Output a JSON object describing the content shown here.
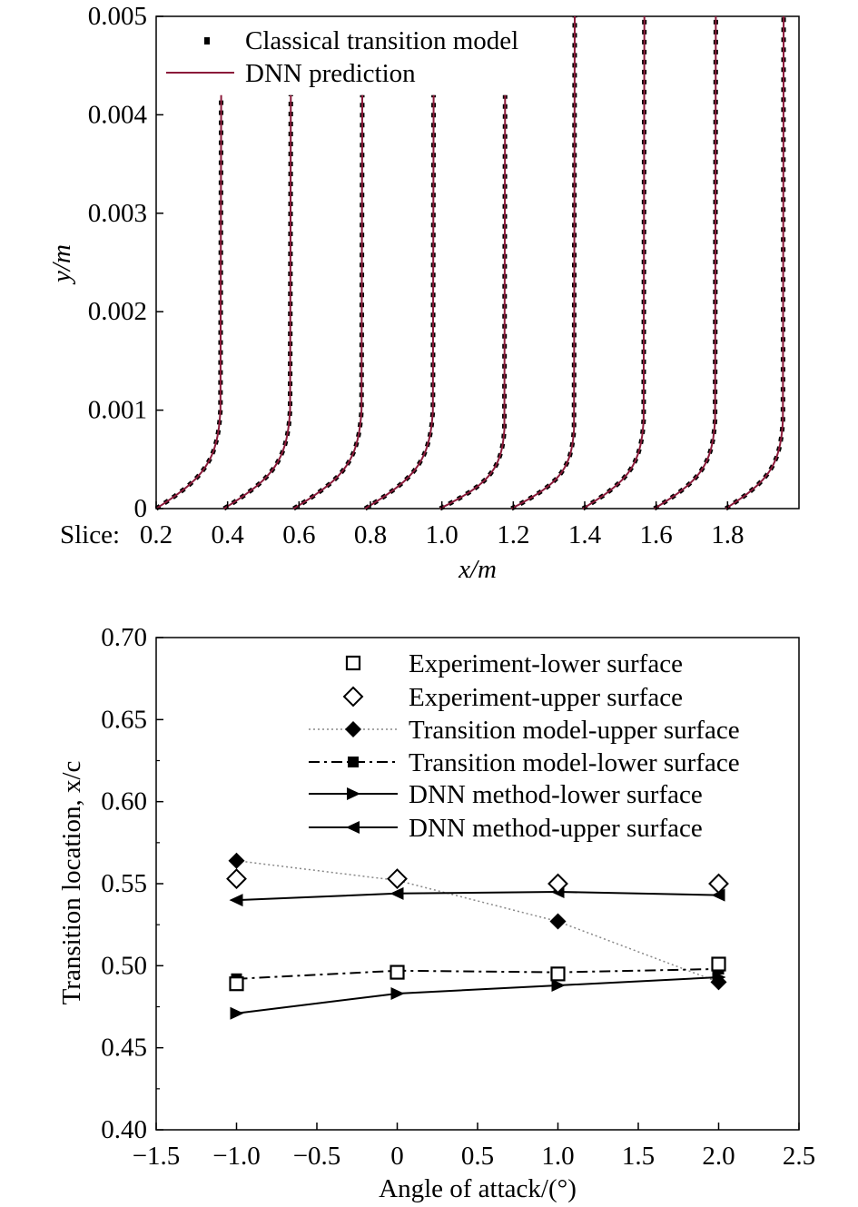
{
  "chart_data": [
    {
      "type": "line",
      "title": "",
      "slice_prefix": "Slice:",
      "xlabel": "x/m",
      "ylabel": "y/m",
      "xlim": [
        0.2,
        2.0
      ],
      "ylim": [
        0,
        0.005
      ],
      "x_ticks": [
        "0.2",
        "0.4",
        "0.6",
        "0.8",
        "1.0",
        "1.2",
        "1.4",
        "1.6",
        "1.8"
      ],
      "y_ticks": [
        "0",
        "0.001",
        "0.002",
        "0.003",
        "0.004",
        "0.005"
      ],
      "legend_position": "top-left",
      "series": [
        {
          "name": "Classical transition model",
          "style": "dots",
          "color": "#000000"
        },
        {
          "name": "DNN prediction",
          "style": "line",
          "color": "#8b1a3a"
        }
      ],
      "profiles": [
        {
          "slice": 0.2,
          "x_base": 0.2,
          "x_edge": 0.38,
          "y_edge": 0.001,
          "y_top": 0.0042
        },
        {
          "slice": 0.4,
          "x_base": 0.39,
          "x_edge": 0.575,
          "y_edge": 0.001,
          "y_top": 0.0042
        },
        {
          "slice": 0.6,
          "x_base": 0.585,
          "x_edge": 0.775,
          "y_edge": 0.001,
          "y_top": 0.0042
        },
        {
          "slice": 0.8,
          "x_base": 0.785,
          "x_edge": 0.975,
          "y_edge": 0.001,
          "y_top": 0.0042
        },
        {
          "slice": 1.0,
          "x_base": 0.995,
          "x_edge": 1.175,
          "y_edge": 0.0008,
          "y_top": 0.0042
        },
        {
          "slice": 1.2,
          "x_base": 1.195,
          "x_edge": 1.37,
          "y_edge": 0.0008,
          "y_top": 0.005
        },
        {
          "slice": 1.4,
          "x_base": 1.395,
          "x_edge": 1.565,
          "y_edge": 0.0009,
          "y_top": 0.005
        },
        {
          "slice": 1.6,
          "x_base": 1.595,
          "x_edge": 1.765,
          "y_edge": 0.0009,
          "y_top": 0.005
        },
        {
          "slice": 1.8,
          "x_base": 1.795,
          "x_edge": 1.955,
          "y_edge": 0.0009,
          "y_top": 0.005
        }
      ]
    },
    {
      "type": "line",
      "title": "",
      "xlabel": "Angle of attack/(°)",
      "ylabel": "Transition location, x/c",
      "xlim": [
        -1.5,
        2.5
      ],
      "ylim": [
        0.4,
        0.7
      ],
      "x_ticks": [
        "−1.5",
        "−1.0",
        "−0.5",
        "0",
        "0.5",
        "1.0",
        "1.5",
        "2.0",
        "2.5"
      ],
      "y_ticks": [
        "0.40",
        "0.45",
        "0.50",
        "0.55",
        "0.60",
        "0.65",
        "0.70"
      ],
      "legend_position": "top-right",
      "x": [
        -1.0,
        0.0,
        1.0,
        2.0
      ],
      "series": [
        {
          "name": "Experiment-lower surface",
          "marker": "square-open",
          "line": "none",
          "values": [
            0.489,
            0.496,
            0.495,
            0.501
          ]
        },
        {
          "name": "Experiment-upper surface",
          "marker": "diamond-open",
          "line": "none",
          "values": [
            0.553,
            0.553,
            0.55,
            0.55
          ]
        },
        {
          "name": "Transition model-upper surface",
          "marker": "diamond-filled",
          "line": "dotted",
          "values": [
            0.564,
            0.552,
            0.527,
            0.49
          ]
        },
        {
          "name": "Transition model-lower surface",
          "marker": "square-filled",
          "line": "dashdot",
          "values": [
            0.492,
            0.497,
            0.496,
            0.498
          ]
        },
        {
          "name": "DNN method-lower surface",
          "marker": "triangle-right",
          "line": "solid",
          "values": [
            0.471,
            0.483,
            0.488,
            0.493
          ]
        },
        {
          "name": "DNN method-upper surface",
          "marker": "triangle-left",
          "line": "solid",
          "values": [
            0.54,
            0.544,
            0.545,
            0.543
          ]
        }
      ]
    }
  ]
}
